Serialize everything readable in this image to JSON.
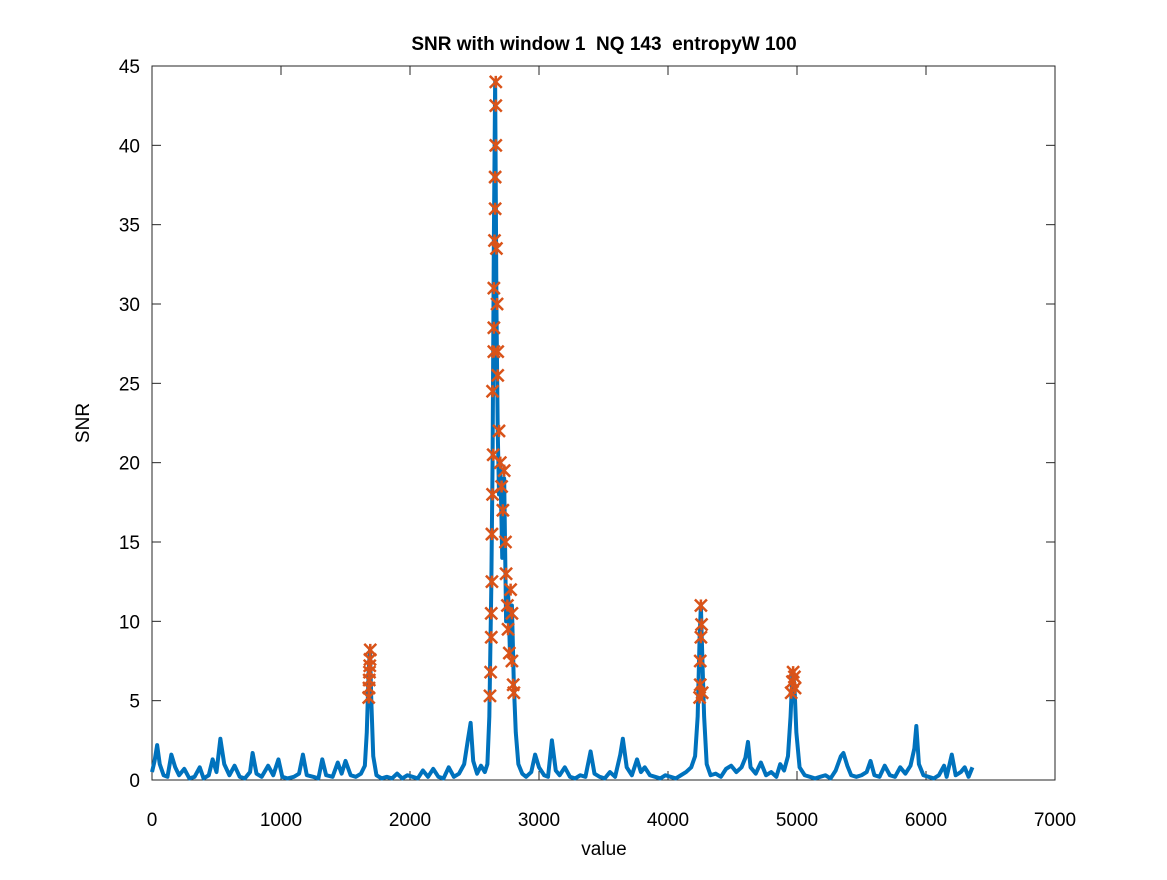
{
  "chart_data": {
    "type": "line",
    "title": "SNR with window 1  NQ 143  entropyW 100",
    "xlabel": "value",
    "ylabel": "SNR",
    "xlim": [
      0,
      7000
    ],
    "xticks": [
      0,
      1000,
      2000,
      3000,
      4000,
      5000,
      6000,
      7000
    ],
    "ylim": [
      0,
      45
    ],
    "yticks": [
      0,
      5,
      10,
      15,
      20,
      25,
      30,
      35,
      40,
      45
    ],
    "grid": false,
    "box": true,
    "series": [
      {
        "type": "line",
        "color": "#0072bd",
        "x": [
          0,
          20,
          40,
          60,
          90,
          120,
          150,
          180,
          210,
          250,
          290,
          330,
          370,
          400,
          440,
          470,
          500,
          530,
          560,
          600,
          640,
          680,
          720,
          760,
          780,
          810,
          850,
          900,
          940,
          980,
          1010,
          1050,
          1100,
          1140,
          1170,
          1200,
          1250,
          1290,
          1320,
          1350,
          1400,
          1440,
          1470,
          1500,
          1540,
          1580,
          1620,
          1650,
          1665,
          1680,
          1690,
          1700,
          1715,
          1740,
          1780,
          1820,
          1860,
          1900,
          1940,
          1980,
          2020,
          2060,
          2100,
          2140,
          2180,
          2220,
          2260,
          2300,
          2340,
          2380,
          2420,
          2450,
          2470,
          2490,
          2520,
          2550,
          2580,
          2600,
          2615,
          2630,
          2640,
          2650,
          2660,
          2670,
          2680,
          2690,
          2700,
          2715,
          2730,
          2745,
          2760,
          2775,
          2790,
          2805,
          2820,
          2840,
          2870,
          2900,
          2940,
          2970,
          3000,
          3040,
          3070,
          3100,
          3130,
          3160,
          3200,
          3240,
          3280,
          3320,
          3360,
          3400,
          3430,
          3470,
          3510,
          3550,
          3590,
          3630,
          3650,
          3680,
          3720,
          3760,
          3790,
          3820,
          3860,
          3900,
          3940,
          3980,
          4020,
          4060,
          4100,
          4140,
          4180,
          4210,
          4230,
          4245,
          4255,
          4265,
          4280,
          4300,
          4330,
          4370,
          4410,
          4450,
          4490,
          4530,
          4570,
          4600,
          4620,
          4640,
          4680,
          4720,
          4760,
          4800,
          4840,
          4870,
          4900,
          4930,
          4950,
          4965,
          4980,
          4995,
          5020,
          5060,
          5100,
          5140,
          5180,
          5220,
          5260,
          5300,
          5340,
          5360,
          5390,
          5420,
          5460,
          5500,
          5540,
          5570,
          5600,
          5640,
          5680,
          5720,
          5760,
          5800,
          5840,
          5880,
          5910,
          5925,
          5945,
          5980,
          6020,
          6060,
          6100,
          6140,
          6160,
          6200,
          6230,
          6270,
          6300,
          6330,
          6360
        ],
        "values": [
          0.5,
          1.2,
          2.2,
          1.0,
          0.3,
          0.2,
          1.6,
          0.8,
          0.3,
          0.7,
          0.1,
          0.2,
          0.8,
          0.1,
          0.3,
          1.3,
          0.5,
          2.6,
          1.0,
          0.3,
          0.9,
          0.2,
          0.1,
          0.5,
          1.7,
          0.4,
          0.2,
          0.9,
          0.3,
          1.3,
          0.2,
          0.1,
          0.2,
          0.4,
          1.6,
          0.3,
          0.2,
          0.1,
          1.3,
          0.3,
          0.2,
          1.1,
          0.4,
          1.2,
          0.3,
          0.2,
          0.4,
          0.9,
          3.0,
          7.0,
          8.2,
          5.0,
          1.5,
          0.3,
          0.1,
          0.2,
          0.1,
          0.4,
          0.1,
          0.3,
          0.2,
          0.1,
          0.6,
          0.2,
          0.7,
          0.2,
          0.1,
          0.8,
          0.2,
          0.4,
          1.0,
          2.6,
          3.6,
          1.2,
          0.4,
          0.9,
          0.5,
          1.0,
          4.0,
          12.0,
          20.0,
          34.0,
          44.0,
          30.0,
          22.0,
          18.0,
          20.0,
          14.0,
          19.0,
          10.0,
          12.0,
          8.0,
          11.0,
          6.0,
          3.0,
          1.0,
          0.4,
          0.2,
          0.5,
          1.6,
          0.8,
          0.3,
          0.2,
          2.5,
          0.6,
          0.3,
          0.8,
          0.2,
          0.1,
          0.3,
          0.2,
          1.8,
          0.4,
          0.2,
          0.1,
          0.5,
          0.2,
          1.6,
          2.6,
          0.8,
          0.3,
          1.3,
          0.5,
          0.8,
          0.3,
          0.2,
          0.1,
          0.3,
          0.2,
          0.1,
          0.3,
          0.5,
          0.8,
          1.5,
          4.0,
          9.0,
          11.0,
          8.0,
          4.0,
          1.0,
          0.3,
          0.4,
          0.2,
          0.7,
          0.9,
          0.5,
          0.8,
          1.4,
          2.4,
          0.8,
          0.4,
          1.1,
          0.3,
          0.5,
          0.2,
          1.0,
          0.6,
          1.5,
          4.0,
          6.8,
          6.0,
          3.0,
          0.8,
          0.3,
          0.2,
          0.1,
          0.2,
          0.3,
          0.1,
          0.6,
          1.5,
          1.7,
          0.9,
          0.3,
          0.2,
          0.3,
          0.5,
          1.2,
          0.3,
          0.2,
          0.9,
          0.3,
          0.2,
          0.8,
          0.4,
          0.9,
          2.0,
          3.4,
          1.0,
          0.3,
          0.2,
          0.1,
          0.3,
          0.9,
          0.2,
          1.6,
          0.3,
          0.5,
          0.8,
          0.2,
          0.8
        ]
      },
      {
        "type": "scatter",
        "color": "#d95319",
        "x": [
          1680,
          1682,
          1684,
          1686,
          1688,
          1690,
          1692,
          2620,
          2625,
          2630,
          2630,
          2635,
          2635,
          2640,
          2645,
          2640,
          2650,
          2650,
          2650,
          2655,
          2660,
          2660,
          2665,
          2665,
          2665,
          2670,
          2675,
          2680,
          2680,
          2690,
          2700,
          2710,
          2720,
          2730,
          2740,
          2745,
          2755,
          2760,
          2770,
          2780,
          2790,
          2790,
          2800,
          2805,
          4245,
          4250,
          4250,
          4255,
          4260,
          4255,
          4265,
          4955,
          4965,
          4970,
          4980,
          4985
        ],
        "values": [
          5.2,
          5.8,
          6.3,
          6.8,
          7.2,
          7.6,
          8.2,
          5.3,
          6.8,
          9.0,
          10.5,
          12.5,
          15.5,
          18.0,
          20.5,
          24.5,
          27.0,
          28.5,
          31.0,
          34.0,
          36.0,
          38.0,
          40.0,
          42.5,
          44.0,
          33.5,
          30.0,
          27.0,
          25.5,
          22.0,
          20.0,
          18.5,
          17.0,
          19.5,
          15.0,
          13.0,
          11.0,
          9.5,
          8.0,
          12.0,
          10.5,
          7.5,
          6.0,
          5.5,
          5.2,
          6.0,
          7.5,
          9.0,
          9.8,
          11.0,
          5.5,
          5.5,
          6.2,
          6.8,
          6.5,
          5.8
        ]
      }
    ]
  }
}
